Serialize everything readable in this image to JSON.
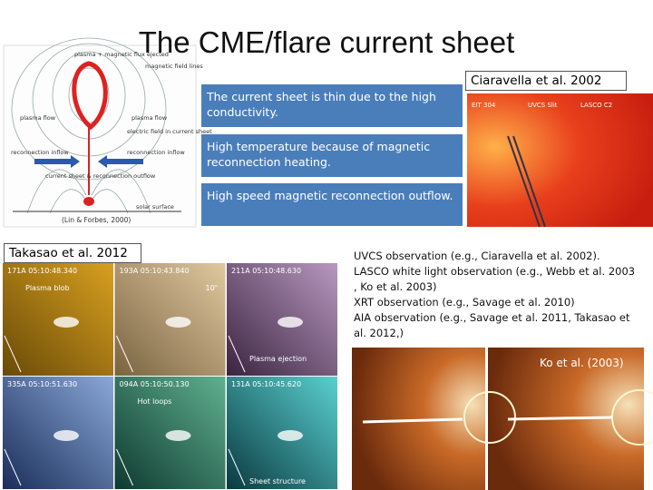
{
  "title": "The CME/flare current sheet",
  "diagram": {
    "labels": [
      "plasma + magnetic flux ejected",
      "magnetic field lines",
      "plasma flow",
      "plasma flow",
      "electric field in current sheet",
      "reconnection inflow",
      "reconnection inflow",
      "current sheet & reconnection outflow",
      "solar surface"
    ],
    "credit": "(Lin & Forbes, 2000)"
  },
  "notes": [
    "The current sheet is thin due to the high conductivity.",
    "High temperature because of magnetic reconnection heating.",
    "High speed magnetic reconnection outflow."
  ],
  "ciaravella": {
    "label": "Ciaravella et al. 2002",
    "image_labels": [
      "EIT 304",
      "UVCS Slit",
      "LASCO C2"
    ]
  },
  "takasao": {
    "label": "Takasao et al. 2012",
    "panels": [
      {
        "label": "171A 05:10:48.340",
        "annotation": "Plasma blob"
      },
      {
        "label": "193A 05:10:43.840",
        "annotation": "10\""
      },
      {
        "label": "211A 05:10:48.630",
        "annotation": "Plasma ejection"
      },
      {
        "label": "335A 05:10:51.630"
      },
      {
        "label": "094A 05:10:50.130",
        "annotation": "Hot loops"
      },
      {
        "label": "131A 05:10:45.620",
        "annotation": "Sheet structure"
      }
    ]
  },
  "observations": [
    "UVCS observation (e.g., Ciaravella et al. 2002).",
    "LASCO white light observation (e.g., Webb et al. 2003",
    ", Ko et al. 2003)",
    "XRT observation (e.g., Savage et al. 2010)",
    "AIA observation (e.g., Savage et al. 2011, Takasao et",
    "al. 2012,)"
  ],
  "ko": {
    "label": "Ko et al. (2003)"
  }
}
